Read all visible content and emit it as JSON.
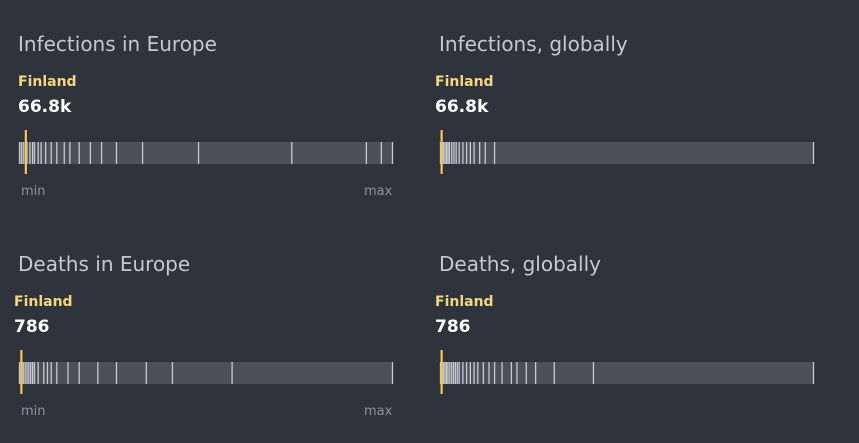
{
  "colors": {
    "background": "#2f333c",
    "track": "#4c5058",
    "tick": "#c7cad0",
    "highlight": "#f3c84b",
    "country_label": "#f3d77a"
  },
  "chart_data": [
    {
      "type": "strip",
      "title": "Infections in Europe",
      "highlight": {
        "name": "Finland",
        "value_label": "66.8k",
        "position": 0.017
      },
      "axis": {
        "min_label": "min",
        "max_label": "max"
      },
      "marks": [
        0.0,
        0.005,
        0.01,
        0.015,
        0.02,
        0.028,
        0.035,
        0.04,
        0.05,
        0.058,
        0.07,
        0.085,
        0.1,
        0.12,
        0.135,
        0.16,
        0.19,
        0.22,
        0.26,
        0.33,
        0.48,
        0.73,
        0.93,
        0.97,
        1.0
      ]
    },
    {
      "type": "strip",
      "title": "Infections, globally",
      "highlight": {
        "name": "Finland",
        "value_label": "66.8k",
        "position": 0.003
      },
      "axis": {
        "min_label": "",
        "max_label": ""
      },
      "marks": [
        0.0,
        0.004,
        0.008,
        0.012,
        0.016,
        0.02,
        0.024,
        0.03,
        0.036,
        0.042,
        0.05,
        0.06,
        0.07,
        0.08,
        0.09,
        0.105,
        0.12,
        0.145,
        1.0
      ]
    },
    {
      "type": "strip",
      "title": "Deaths in Europe",
      "highlight": {
        "name": "Finland",
        "value_label": "786",
        "position": 0.005
      },
      "axis": {
        "min_label": "min",
        "max_label": "max"
      },
      "marks": [
        0.0,
        0.005,
        0.01,
        0.015,
        0.02,
        0.025,
        0.03,
        0.035,
        0.04,
        0.05,
        0.065,
        0.075,
        0.085,
        0.1,
        0.13,
        0.16,
        0.21,
        0.26,
        0.34,
        0.41,
        0.57,
        1.0
      ]
    },
    {
      "type": "strip",
      "title": "Deaths, globally",
      "highlight": {
        "name": "Finland",
        "value_label": "786",
        "position": 0.003
      },
      "axis": {
        "min_label": "",
        "max_label": ""
      },
      "marks": [
        0.0,
        0.004,
        0.008,
        0.012,
        0.016,
        0.02,
        0.025,
        0.03,
        0.035,
        0.04,
        0.045,
        0.05,
        0.06,
        0.07,
        0.08,
        0.09,
        0.1,
        0.115,
        0.13,
        0.145,
        0.165,
        0.19,
        0.205,
        0.23,
        0.255,
        0.305,
        0.41,
        1.0
      ]
    }
  ]
}
